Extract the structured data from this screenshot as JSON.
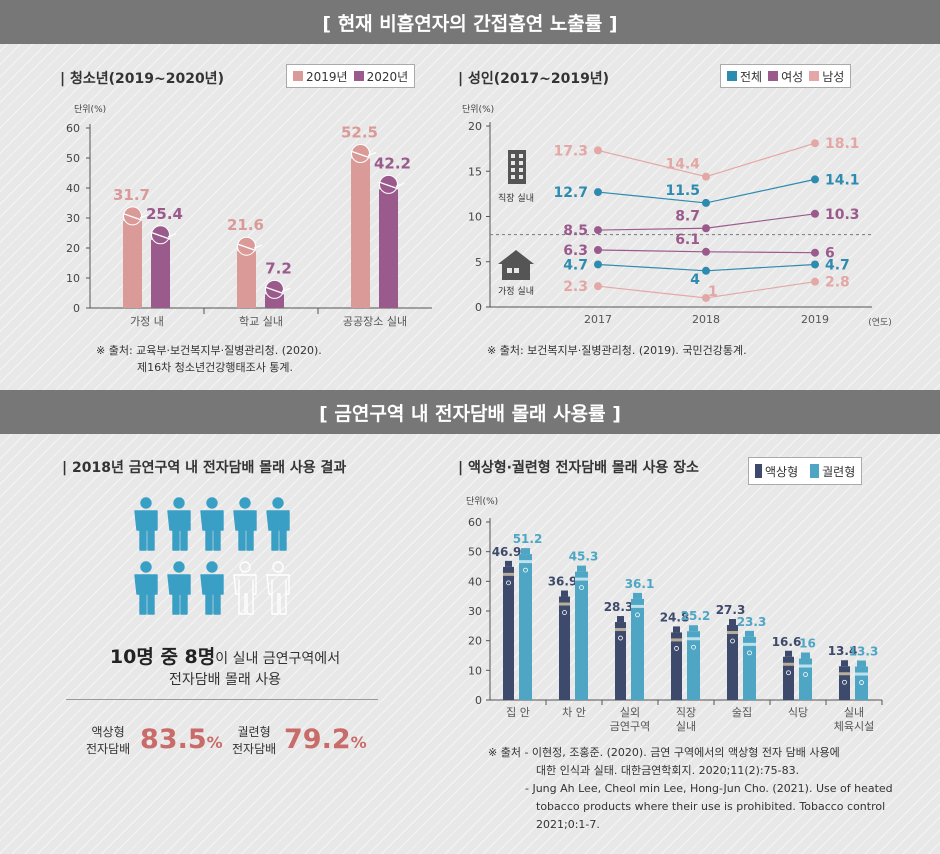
{
  "banner1": "[ 현재 비흡연자의 간접흡연 노출률 ]",
  "banner2": "[ 금연구역 내 전자담배 몰래 사용률 ]",
  "colors": {
    "y2019": "#d99a98",
    "y2020": "#9b5a8c",
    "total": "#2e8bb0",
    "female": "#9b5a8c",
    "male": "#e3a7a5",
    "liquid": "#3e4a6b",
    "tobacco": "#4ea6c4",
    "person": "#3a9fc4"
  },
  "p1": {
    "title": "| 청소년(2019~2020년)",
    "legend": [
      "2019년",
      "2020년"
    ],
    "unit": "단위(%)",
    "source1": "※ 출처: 교육부·보건복지부·질병관리청. (2020).",
    "source2": "제16차 청소년건강행태조사 통계."
  },
  "p2": {
    "title": "| 성인(2017~2019년)",
    "legend": [
      "전체",
      "여성",
      "남성"
    ],
    "unit": "단위(%)",
    "work_label": "직장 실내",
    "home_label": "가정 실내",
    "xunit": "(연도)",
    "source": "※ 출처: 보건복지부·질병관리청. (2019). 국민건강통계."
  },
  "p3": {
    "title": "| 2018년 금연구역 내 전자담배 몰래 사용 결과",
    "big1": "10명 중 8명",
    "line1rest": "이 실내 금연구역에서",
    "line2": "전자담배 몰래 사용",
    "liquid_label1": "액상형",
    "liquid_label2": "전자담배",
    "liquid_value": "83.5",
    "tobacco_label1": "궐련형",
    "tobacco_label2": "전자담배",
    "tobacco_value": "79.2",
    "pct": "%",
    "persons_filled": 8,
    "persons_total": 10
  },
  "p4": {
    "title": "| 액상형·궐련형 전자담배 몰래 사용 장소",
    "legend": [
      "액상형",
      "궐련형"
    ],
    "unit": "단위(%)",
    "src_1": "※ 출처 - 이현정, 조홍준. (2020). 금연 구역에서의 액상형 전자 담배 사용에",
    "src_2": "대한 인식과 실태. 대한금연학회지. 2020;11(2):75-83.",
    "src_3": "- Jung Ah Lee, Cheol min Lee, Hong-Jun Cho. (2021). Use of heated",
    "src_4": "tobacco products where their use is prohibited. Tobacco control",
    "src_5": "2021;0:1-7."
  },
  "chart_data": [
    {
      "type": "bar",
      "categories": [
        "가정 내",
        "학교 실내",
        "공공장소 실내"
      ],
      "series": [
        {
          "name": "2019년",
          "values": [
            31.7,
            21.6,
            52.5
          ]
        },
        {
          "name": "2020년",
          "values": [
            25.4,
            7.2,
            42.2
          ]
        }
      ],
      "title": "청소년(2019~2020년)",
      "ylabel": "단위(%)",
      "ylim": [
        0,
        60
      ],
      "yticks": [
        0,
        10,
        20,
        30,
        40,
        50,
        60
      ],
      "legend": "top-right"
    },
    {
      "type": "line",
      "x": [
        "2017",
        "2018",
        "2019"
      ],
      "series": [
        {
          "name": "전체",
          "group": "직장 실내",
          "values": [
            12.7,
            11.5,
            14.1
          ]
        },
        {
          "name": "여성",
          "group": "직장 실내",
          "values": [
            8.5,
            8.7,
            10.3
          ]
        },
        {
          "name": "남성",
          "group": "직장 실내",
          "values": [
            17.3,
            14.4,
            18.1
          ]
        },
        {
          "name": "전체",
          "group": "가정 실내",
          "values": [
            4.7,
            4.0,
            4.7
          ]
        },
        {
          "name": "여성",
          "group": "가정 실내",
          "values": [
            6.3,
            6.1,
            6.0
          ]
        },
        {
          "name": "남성",
          "group": "가정 실내",
          "values": [
            2.3,
            1.0,
            2.8
          ]
        }
      ],
      "title": "성인(2017~2019년)",
      "ylabel": "단위(%)",
      "xlabel": "(연도)",
      "ylim": [
        0,
        20
      ],
      "yticks": [
        0,
        5,
        10,
        15,
        20
      ],
      "legend": "top-right"
    },
    {
      "type": "bar",
      "categories": [
        "집 안",
        "차 안",
        "실외 금연구역",
        "직장 실내",
        "술집",
        "식당",
        "실내 체육시설"
      ],
      "series": [
        {
          "name": "액상형",
          "values": [
            46.9,
            36.9,
            28.3,
            24.8,
            27.3,
            16.6,
            13.4
          ]
        },
        {
          "name": "궐련형",
          "values": [
            51.2,
            45.3,
            36.1,
            25.2,
            23.3,
            16.0,
            13.3
          ]
        }
      ],
      "title": "액상형·궐련형 전자담배 몰래 사용 장소",
      "ylabel": "단위(%)",
      "ylim": [
        0,
        60
      ],
      "yticks": [
        0,
        10,
        20,
        30,
        40,
        50,
        60
      ],
      "legend": "top-right"
    }
  ]
}
